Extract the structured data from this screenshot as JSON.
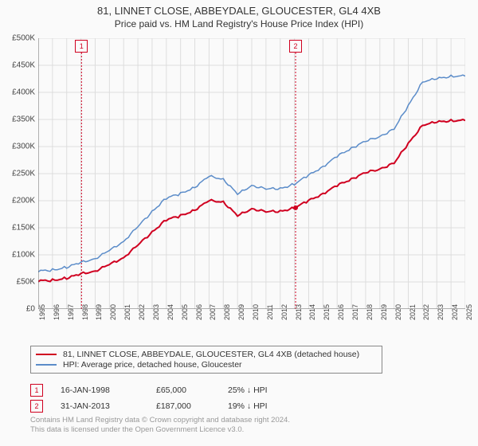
{
  "title": {
    "line1": "81, LINNET CLOSE, ABBEYDALE, GLOUCESTER, GL4 4XB",
    "line2": "Price paid vs. HM Land Registry's House Price Index (HPI)"
  },
  "chart": {
    "type": "line",
    "background_color": "#fafafa",
    "grid_color": "#dddddd",
    "axis_color": "#666666",
    "xlim": [
      1995,
      2025
    ],
    "ylim": [
      0,
      500000
    ],
    "ytick_step": 50000,
    "yticks": [
      "£0",
      "£50K",
      "£100K",
      "£150K",
      "£200K",
      "£250K",
      "£300K",
      "£350K",
      "£400K",
      "£450K",
      "£500K"
    ],
    "xticks": [
      1995,
      1996,
      1997,
      1998,
      1999,
      2000,
      2001,
      2002,
      2003,
      2004,
      2005,
      2006,
      2007,
      2008,
      2009,
      2010,
      2011,
      2012,
      2013,
      2014,
      2015,
      2016,
      2017,
      2018,
      2019,
      2020,
      2021,
      2022,
      2023,
      2024,
      2025
    ],
    "tick_fontsize_pt": 9,
    "series": [
      {
        "id": "property",
        "label": "81, LINNET CLOSE, ABBEYDALE, GLOUCESTER, GL4 4XB (detached house)",
        "color": "#d00020",
        "line_width": 2,
        "points": [
          [
            1995,
            52000
          ],
          [
            1996,
            53000
          ],
          [
            1997,
            57000
          ],
          [
            1998,
            65000
          ],
          [
            1999,
            70000
          ],
          [
            2000,
            82000
          ],
          [
            2001,
            95000
          ],
          [
            2002,
            118000
          ],
          [
            2003,
            142000
          ],
          [
            2004,
            165000
          ],
          [
            2005,
            172000
          ],
          [
            2006,
            183000
          ],
          [
            2007,
            200000
          ],
          [
            2008,
            198000
          ],
          [
            2009,
            172000
          ],
          [
            2010,
            185000
          ],
          [
            2011,
            180000
          ],
          [
            2012,
            180000
          ],
          [
            2013,
            187000
          ],
          [
            2014,
            200000
          ],
          [
            2015,
            213000
          ],
          [
            2016,
            228000
          ],
          [
            2017,
            240000
          ],
          [
            2018,
            252000
          ],
          [
            2019,
            258000
          ],
          [
            2020,
            270000
          ],
          [
            2021,
            305000
          ],
          [
            2022,
            340000
          ],
          [
            2023,
            345000
          ],
          [
            2024,
            348000
          ],
          [
            2025,
            348000
          ]
        ]
      },
      {
        "id": "hpi",
        "label": "HPI: Average price, detached house, Gloucester",
        "color": "#5b8cc9",
        "line_width": 1.5,
        "points": [
          [
            1995,
            70000
          ],
          [
            1996,
            72000
          ],
          [
            1997,
            77000
          ],
          [
            1998,
            86000
          ],
          [
            1999,
            93000
          ],
          [
            2000,
            108000
          ],
          [
            2001,
            125000
          ],
          [
            2002,
            152000
          ],
          [
            2003,
            180000
          ],
          [
            2004,
            205000
          ],
          [
            2005,
            213000
          ],
          [
            2006,
            225000
          ],
          [
            2007,
            245000
          ],
          [
            2008,
            240000
          ],
          [
            2009,
            212000
          ],
          [
            2010,
            228000
          ],
          [
            2011,
            222000
          ],
          [
            2012,
            222000
          ],
          [
            2013,
            231000
          ],
          [
            2014,
            247000
          ],
          [
            2015,
            263000
          ],
          [
            2016,
            282000
          ],
          [
            2017,
            297000
          ],
          [
            2018,
            310000
          ],
          [
            2019,
            318000
          ],
          [
            2020,
            333000
          ],
          [
            2021,
            375000
          ],
          [
            2022,
            420000
          ],
          [
            2023,
            425000
          ],
          [
            2024,
            430000
          ],
          [
            2025,
            430000
          ]
        ]
      }
    ],
    "event_markers": [
      {
        "n": "1",
        "year": 1998.04,
        "ytop": 0
      },
      {
        "n": "2",
        "year": 2013.08,
        "ytop": 0
      }
    ],
    "sale_point": {
      "year": 2013.08,
      "value": 187000,
      "color": "#d00020",
      "radius": 3
    }
  },
  "legend": {
    "rows": [
      {
        "swatch_color": "#d00020",
        "label_key": "chart.series.0.label"
      },
      {
        "swatch_color": "#5b8cc9",
        "label_key": "chart.series.1.label"
      }
    ]
  },
  "events": [
    {
      "n": "1",
      "date": "16-JAN-1998",
      "price": "£65,000",
      "diff": "25% ↓ HPI"
    },
    {
      "n": "2",
      "date": "31-JAN-2013",
      "price": "£187,000",
      "diff": "19% ↓ HPI"
    }
  ],
  "credits": {
    "line1": "Contains HM Land Registry data © Crown copyright and database right 2024.",
    "line2": "This data is licensed under the Open Government Licence v3.0."
  }
}
